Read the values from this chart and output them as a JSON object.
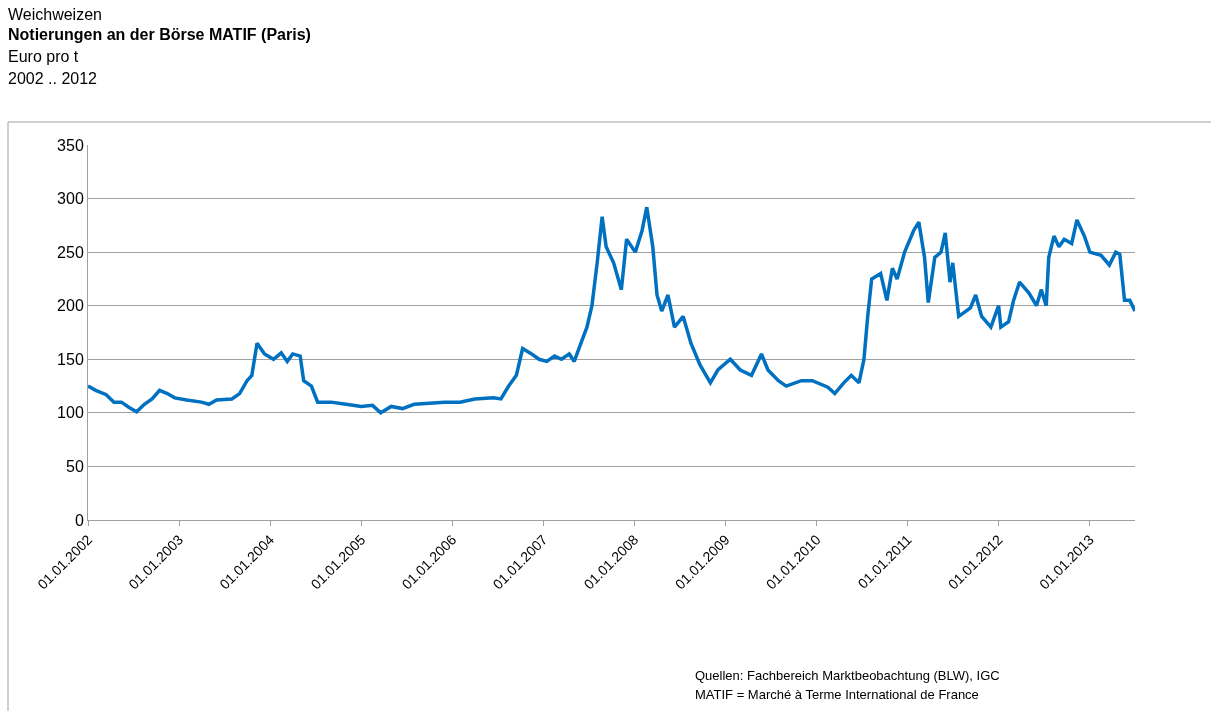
{
  "chart_data": {
    "type": "line",
    "title": "Weichweizen",
    "subtitle": "Notierungen an der Börse MATIF (Paris)",
    "ylabel": "Euro pro t",
    "annotations": [
      "2002 .. 2012",
      "Quellen: Fachbereich Marktbeobachtung (BLW), IGC",
      "MATIF = Marché à Terme International de France"
    ],
    "x": [
      "2002-01-01",
      "2002-02-01",
      "2002-03-15",
      "2002-04-15",
      "2002-05-15",
      "2002-06-15",
      "2002-07-15",
      "2002-08-15",
      "2002-09-15",
      "2002-10-15",
      "2002-11-15",
      "2002-12-15",
      "2003-02-01",
      "2003-04-01",
      "2003-05-01",
      "2003-06-01",
      "2003-08-01",
      "2003-09-01",
      "2003-10-01",
      "2003-10-20",
      "2003-11-10",
      "2003-12-10",
      "2004-01-15",
      "2004-02-15",
      "2004-03-10",
      "2004-04-01",
      "2004-05-01",
      "2004-05-15",
      "2004-06-15",
      "2004-07-10",
      "2004-09-01",
      "2004-11-01",
      "2005-01-01",
      "2005-02-15",
      "2005-03-20",
      "2005-05-01",
      "2005-06-15",
      "2005-08-01",
      "2005-10-01",
      "2005-12-01",
      "2006-02-01",
      "2006-04-01",
      "2006-06-15",
      "2006-07-15",
      "2006-08-15",
      "2006-09-15",
      "2006-10-10",
      "2006-11-15",
      "2006-12-15",
      "2007-01-15",
      "2007-02-15",
      "2007-03-15",
      "2007-04-15",
      "2007-05-05",
      "2007-06-01",
      "2007-06-25",
      "2007-07-15",
      "2007-08-05",
      "2007-08-25",
      "2007-09-10",
      "2007-10-10",
      "2007-11-10",
      "2007-12-01",
      "2008-01-05",
      "2008-02-01",
      "2008-02-20",
      "2008-03-15",
      "2008-04-01",
      "2008-04-20",
      "2008-05-15",
      "2008-06-10",
      "2008-07-15",
      "2008-08-15",
      "2008-09-20",
      "2008-11-01",
      "2008-12-01",
      "2009-01-20",
      "2009-03-01",
      "2009-04-15",
      "2009-05-25",
      "2009-06-20",
      "2009-08-01",
      "2009-09-01",
      "2009-11-01",
      "2009-12-15",
      "2010-02-15",
      "2010-03-15",
      "2010-04-20",
      "2010-05-20",
      "2010-06-20",
      "2010-07-10",
      "2010-07-25",
      "2010-08-10",
      "2010-09-15",
      "2010-10-10",
      "2010-11-01",
      "2010-11-20",
      "2010-12-20",
      "2011-01-25",
      "2011-02-15",
      "2011-03-10",
      "2011-03-25",
      "2011-04-20",
      "2011-05-15",
      "2011-06-01",
      "2011-06-20",
      "2011-07-01",
      "2011-07-25",
      "2011-09-10",
      "2011-10-01",
      "2011-10-25",
      "2011-12-01",
      "2012-01-01",
      "2012-01-10",
      "2012-02-10",
      "2012-03-01",
      "2012-03-25",
      "2012-05-01",
      "2012-06-01",
      "2012-06-20",
      "2012-07-10",
      "2012-07-20",
      "2012-08-10",
      "2012-08-30",
      "2012-09-20",
      "2012-10-20",
      "2012-11-10",
      "2012-12-10",
      "2013-01-01",
      "2013-02-15",
      "2013-03-20",
      "2013-04-15",
      "2013-05-01",
      "2013-05-20",
      "2013-06-10",
      "2013-07-01"
    ],
    "series": [
      {
        "color": "#0070c0",
        "values": [
          125,
          121,
          117,
          110,
          110,
          105,
          101,
          108,
          113,
          121,
          118,
          114,
          112,
          110,
          108,
          112,
          113,
          118,
          130,
          135,
          165,
          155,
          150,
          156,
          148,
          155,
          153,
          130,
          125,
          110,
          110,
          108,
          106,
          107,
          100,
          106,
          104,
          108,
          109,
          110,
          110,
          113,
          114,
          113,
          125,
          135,
          160,
          155,
          150,
          148,
          153,
          150,
          155,
          148,
          165,
          180,
          200,
          240,
          283,
          255,
          240,
          215,
          262,
          250,
          270,
          292,
          255,
          210,
          195,
          210,
          180,
          190,
          165,
          145,
          128,
          140,
          150,
          140,
          135,
          155,
          140,
          130,
          125,
          130,
          130,
          124,
          118,
          128,
          135,
          128,
          150,
          190,
          225,
          230,
          205,
          235,
          225,
          250,
          270,
          278,
          245,
          203,
          245,
          250,
          268,
          222,
          240,
          190,
          198,
          210,
          190,
          180,
          200,
          180,
          185,
          205,
          222,
          212,
          200,
          215,
          200,
          245,
          265,
          255,
          262,
          258,
          280,
          265,
          250,
          247,
          238,
          250,
          248,
          205,
          205,
          195
        ]
      }
    ],
    "xlim": [
      "2002-01-01",
      "2013-07-01"
    ],
    "xticks": [
      {
        "value": "2002-01-01",
        "label": "01.01.2002"
      },
      {
        "value": "2003-01-01",
        "label": "01.01.2003"
      },
      {
        "value": "2004-01-01",
        "label": "01.01.2004"
      },
      {
        "value": "2005-01-01",
        "label": "01.01.2005"
      },
      {
        "value": "2006-01-01",
        "label": "01.01.2006"
      },
      {
        "value": "2007-01-01",
        "label": "01.01.2007"
      },
      {
        "value": "2008-01-01",
        "label": "01.01.2008"
      },
      {
        "value": "2009-01-01",
        "label": "01.01.2009"
      },
      {
        "value": "2010-01-01",
        "label": "01.01.2010"
      },
      {
        "value": "2011-01-01",
        "label": "01.01.2011"
      },
      {
        "value": "2012-01-01",
        "label": "01.01.2012"
      },
      {
        "value": "2013-01-01",
        "label": "01.01.2013"
      }
    ],
    "ylim": [
      0,
      350
    ],
    "yticks": [
      0,
      50,
      100,
      150,
      200,
      250,
      300,
      350
    ],
    "grid": "y",
    "marker": "none",
    "line_style": "solid"
  }
}
